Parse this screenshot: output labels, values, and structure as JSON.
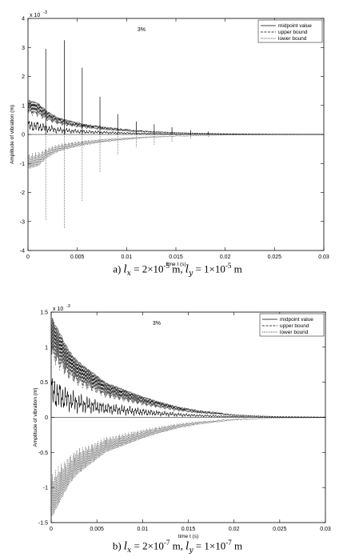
{
  "chart_data": [
    {
      "type": "line",
      "annotation": "3%",
      "xlabel": "time t (s)",
      "ylabel": "Amplitude of vibration (m)",
      "y_exponent": "x 10",
      "y_exponent_power": "-3",
      "xlim": [
        0,
        0.03
      ],
      "ylim": [
        -4,
        4
      ],
      "xticks": [
        0,
        0.005,
        0.01,
        0.015,
        0.02,
        0.025,
        0.03
      ],
      "xtick_labels": [
        "0",
        "0.005",
        "0.01",
        "0.015",
        "0.02",
        "0.025",
        "0.03"
      ],
      "yticks": [
        -4,
        -3,
        -2,
        -1,
        0,
        1,
        2,
        3,
        4
      ],
      "ytick_labels": [
        "-4",
        "-3",
        "-2",
        "-1",
        "0",
        "1",
        "2",
        "3",
        "4"
      ],
      "legend_position": "top-right",
      "series": [
        {
          "name": "midpoint value",
          "style": "solid"
        },
        {
          "name": "upper bound",
          "style": "dashed"
        },
        {
          "name": "lower bound",
          "style": "dotted"
        }
      ],
      "envelope": {
        "x": [
          0,
          0.001,
          0.002,
          0.003,
          0.004,
          0.005,
          0.006,
          0.008,
          0.01,
          0.012,
          0.015,
          0.018,
          0.02,
          0.025,
          0.03
        ],
        "amp": [
          1.2,
          1.1,
          0.8,
          0.6,
          0.5,
          0.42,
          0.35,
          0.25,
          0.18,
          0.12,
          0.07,
          0.04,
          0.025,
          0.01,
          0.005
        ]
      },
      "spikes": [
        {
          "x": 0.0018,
          "value": 2.95
        },
        {
          "x": 0.0037,
          "value": 3.25
        },
        {
          "x": 0.0055,
          "value": 2.3
        },
        {
          "x": 0.0073,
          "value": 1.3
        },
        {
          "x": 0.0091,
          "value": 0.7
        },
        {
          "x": 0.011,
          "value": 0.45
        },
        {
          "x": 0.0128,
          "value": 0.35
        },
        {
          "x": 0.0146,
          "value": 0.25
        },
        {
          "x": 0.0165,
          "value": 0.15
        },
        {
          "x": 0.0183,
          "value": 0.1
        }
      ],
      "caption": {
        "prefix": "a) ",
        "lx_sym": "l",
        "lx_sub": "x",
        "lx_eq": " = 2×10",
        "lx_exp": "-5",
        "sep": " m, ",
        "ly_sym": "l",
        "ly_sub": "y",
        "ly_eq": " = 1×10",
        "ly_exp": "-5",
        "unit": " m"
      }
    },
    {
      "type": "line",
      "annotation": "3%",
      "xlabel": "time t (s)",
      "ylabel": "Amplitude of vibration (m)",
      "y_exponent": "x 10",
      "y_exponent_power": "-3",
      "xlim": [
        0,
        0.03
      ],
      "ylim": [
        -1.5,
        1.5
      ],
      "xticks": [
        0,
        0.005,
        0.01,
        0.015,
        0.02,
        0.025,
        0.03
      ],
      "xtick_labels": [
        "0",
        "0.005",
        "0.01",
        "0.015",
        "0.02",
        "0.025",
        "0.03"
      ],
      "yticks": [
        -1.5,
        -1,
        -0.5,
        0,
        0.5,
        1,
        1.5
      ],
      "ytick_labels": [
        "-1.5",
        "-1",
        "-0.5",
        "0",
        "0.5",
        "1",
        "1.5"
      ],
      "legend_position": "top-right",
      "series": [
        {
          "name": "midpoint value",
          "style": "solid"
        },
        {
          "name": "upper bound",
          "style": "dashed"
        },
        {
          "name": "lower bound",
          "style": "dotted"
        }
      ],
      "envelope": {
        "x": [
          0,
          0.001,
          0.002,
          0.003,
          0.004,
          0.005,
          0.006,
          0.008,
          0.01,
          0.012,
          0.014,
          0.016,
          0.018,
          0.02,
          0.022,
          0.025,
          0.03
        ],
        "amp": [
          1.45,
          1.2,
          0.95,
          0.8,
          0.7,
          0.6,
          0.5,
          0.4,
          0.3,
          0.22,
          0.15,
          0.1,
          0.07,
          0.04,
          0.025,
          0.012,
          0.005
        ]
      },
      "spikes": [],
      "caption": {
        "prefix": "b) ",
        "lx_sym": "l",
        "lx_sub": "x",
        "lx_eq": " = 2×10",
        "lx_exp": "-7",
        "sep": " m, ",
        "ly_sym": "l",
        "ly_sub": "y",
        "ly_eq": " = 1×10",
        "ly_exp": "-7",
        "unit": " m"
      }
    }
  ]
}
